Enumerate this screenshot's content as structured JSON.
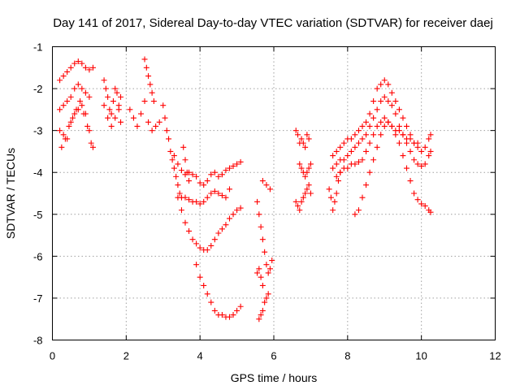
{
  "chart_data": {
    "type": "scatter",
    "title": "Day 141 of 2017, Sidereal Day-to-day VTEC variation (SDTVAR) for receiver daej",
    "xlabel": "GPS time / hours",
    "ylabel": "SDTVAR / TECUs",
    "xlim": [
      0,
      12
    ],
    "ylim": [
      -8,
      -1
    ],
    "xticks": [
      0,
      2,
      4,
      6,
      8,
      10,
      12
    ],
    "yticks": [
      -8,
      -7,
      -6,
      -5,
      -4,
      -3,
      -2,
      -1
    ],
    "xtick_labels": [
      "0",
      "2",
      "4",
      "6",
      "8",
      "10",
      "12"
    ],
    "ytick_labels": [
      "-8",
      "-7",
      "-6",
      "-5",
      "-4",
      "-3",
      "-2",
      "-1"
    ],
    "grid": true,
    "marker": "+",
    "color": "#ff0000",
    "series": [
      {
        "values": [
          [
            0.2,
            -1.8
          ],
          [
            0.3,
            -1.7
          ],
          [
            0.4,
            -1.6
          ],
          [
            0.5,
            -1.5
          ],
          [
            0.6,
            -1.4
          ],
          [
            0.7,
            -1.35
          ],
          [
            0.8,
            -1.4
          ],
          [
            0.9,
            -1.5
          ],
          [
            1.0,
            -1.55
          ],
          [
            1.1,
            -1.5
          ],
          [
            0.2,
            -2.5
          ],
          [
            0.3,
            -2.4
          ],
          [
            0.4,
            -2.3
          ],
          [
            0.5,
            -2.2
          ],
          [
            0.6,
            -2.0
          ],
          [
            0.7,
            -1.9
          ],
          [
            0.8,
            -2.0
          ],
          [
            0.9,
            -2.1
          ],
          [
            1.0,
            -2.2
          ],
          [
            0.2,
            -3.0
          ],
          [
            0.3,
            -3.1
          ],
          [
            0.4,
            -3.2
          ],
          [
            0.5,
            -2.8
          ],
          [
            0.6,
            -2.6
          ],
          [
            0.7,
            -2.5
          ],
          [
            0.8,
            -2.4
          ],
          [
            0.9,
            -2.6
          ],
          [
            1.0,
            -3.0
          ],
          [
            1.1,
            -3.4
          ],
          [
            0.25,
            -3.4
          ],
          [
            0.35,
            -3.2
          ],
          [
            0.45,
            -2.9
          ],
          [
            0.55,
            -2.7
          ],
          [
            0.65,
            -2.5
          ],
          [
            0.75,
            -2.3
          ],
          [
            0.85,
            -2.6
          ],
          [
            0.95,
            -2.9
          ],
          [
            1.05,
            -3.3
          ],
          [
            1.4,
            -1.8
          ],
          [
            1.45,
            -2.0
          ],
          [
            1.5,
            -2.2
          ],
          [
            1.55,
            -2.5
          ],
          [
            1.6,
            -2.6
          ],
          [
            1.65,
            -2.3
          ],
          [
            1.7,
            -2.0
          ],
          [
            1.75,
            -2.1
          ],
          [
            1.8,
            -2.4
          ],
          [
            1.85,
            -2.8
          ],
          [
            1.4,
            -2.4
          ],
          [
            1.5,
            -2.7
          ],
          [
            1.6,
            -2.9
          ],
          [
            1.7,
            -2.7
          ],
          [
            1.8,
            -2.5
          ],
          [
            1.85,
            -2.2
          ],
          [
            2.1,
            -2.5
          ],
          [
            2.2,
            -2.7
          ],
          [
            2.3,
            -2.9
          ],
          [
            2.4,
            -2.6
          ],
          [
            2.5,
            -2.3
          ],
          [
            2.6,
            -2.8
          ],
          [
            2.7,
            -3.0
          ],
          [
            2.8,
            -2.9
          ],
          [
            2.9,
            -2.8
          ],
          [
            2.5,
            -1.3
          ],
          [
            2.55,
            -1.5
          ],
          [
            2.6,
            -1.7
          ],
          [
            2.65,
            -1.9
          ],
          [
            2.7,
            -2.1
          ],
          [
            2.75,
            -2.3
          ],
          [
            3.0,
            -2.4
          ],
          [
            3.05,
            -2.7
          ],
          [
            3.1,
            -3.0
          ],
          [
            3.15,
            -3.2
          ],
          [
            3.2,
            -3.5
          ],
          [
            3.25,
            -3.7
          ],
          [
            3.3,
            -3.9
          ],
          [
            3.35,
            -4.1
          ],
          [
            3.4,
            -4.3
          ],
          [
            3.45,
            -4.5
          ],
          [
            3.5,
            -4.6
          ],
          [
            3.6,
            -4.6
          ],
          [
            3.7,
            -4.65
          ],
          [
            3.8,
            -4.7
          ],
          [
            3.9,
            -4.7
          ],
          [
            4.0,
            -4.75
          ],
          [
            4.1,
            -4.7
          ],
          [
            4.2,
            -4.6
          ],
          [
            4.3,
            -4.5
          ],
          [
            4.4,
            -4.45
          ],
          [
            4.5,
            -4.5
          ],
          [
            4.6,
            -4.55
          ],
          [
            4.7,
            -4.6
          ],
          [
            4.8,
            -4.4
          ],
          [
            3.3,
            -3.6
          ],
          [
            3.4,
            -3.8
          ],
          [
            3.5,
            -3.95
          ],
          [
            3.6,
            -4.05
          ],
          [
            3.7,
            -4.0
          ],
          [
            3.8,
            -4.05
          ],
          [
            3.9,
            -4.1
          ],
          [
            4.0,
            -4.25
          ],
          [
            4.1,
            -4.3
          ],
          [
            4.2,
            -4.2
          ],
          [
            4.3,
            -4.05
          ],
          [
            4.4,
            -4.0
          ],
          [
            4.5,
            -4.1
          ],
          [
            4.6,
            -4.05
          ],
          [
            4.7,
            -3.95
          ],
          [
            4.8,
            -3.9
          ],
          [
            4.9,
            -3.85
          ],
          [
            5.0,
            -3.8
          ],
          [
            5.1,
            -3.75
          ],
          [
            3.4,
            -4.6
          ],
          [
            3.5,
            -4.9
          ],
          [
            3.6,
            -5.2
          ],
          [
            3.7,
            -5.4
          ],
          [
            3.8,
            -5.6
          ],
          [
            3.9,
            -5.7
          ],
          [
            4.0,
            -5.8
          ],
          [
            4.1,
            -5.85
          ],
          [
            4.2,
            -5.85
          ],
          [
            4.3,
            -5.75
          ],
          [
            4.4,
            -5.6
          ],
          [
            4.5,
            -5.45
          ],
          [
            4.6,
            -5.35
          ],
          [
            4.7,
            -5.25
          ],
          [
            4.8,
            -5.1
          ],
          [
            4.9,
            -5.0
          ],
          [
            5.0,
            -4.9
          ],
          [
            5.1,
            -4.85
          ],
          [
            3.9,
            -6.2
          ],
          [
            4.0,
            -6.5
          ],
          [
            4.1,
            -6.7
          ],
          [
            4.2,
            -6.9
          ],
          [
            4.3,
            -7.1
          ],
          [
            4.4,
            -7.3
          ],
          [
            4.5,
            -7.4
          ],
          [
            4.6,
            -7.4
          ],
          [
            4.7,
            -7.45
          ],
          [
            4.8,
            -7.45
          ],
          [
            4.9,
            -7.4
          ],
          [
            5.0,
            -7.3
          ],
          [
            5.1,
            -7.2
          ],
          [
            3.55,
            -3.4
          ],
          [
            3.6,
            -3.7
          ],
          [
            3.65,
            -4.0
          ],
          [
            3.7,
            -4.2
          ],
          [
            5.55,
            -4.7
          ],
          [
            5.6,
            -5.0
          ],
          [
            5.65,
            -5.3
          ],
          [
            5.7,
            -5.6
          ],
          [
            5.75,
            -5.9
          ],
          [
            5.8,
            -6.2
          ],
          [
            5.85,
            -6.4
          ],
          [
            5.9,
            -6.3
          ],
          [
            5.95,
            -6.1
          ],
          [
            5.6,
            -6.3
          ],
          [
            5.65,
            -6.5
          ],
          [
            5.7,
            -6.7
          ],
          [
            5.55,
            -6.4
          ],
          [
            5.6,
            -7.5
          ],
          [
            5.65,
            -7.4
          ],
          [
            5.7,
            -7.3
          ],
          [
            5.75,
            -7.1
          ],
          [
            5.8,
            -7.0
          ],
          [
            5.85,
            -6.9
          ],
          [
            5.7,
            -4.2
          ],
          [
            5.8,
            -4.3
          ],
          [
            5.9,
            -4.4
          ],
          [
            6.6,
            -3.0
          ],
          [
            6.65,
            -3.1
          ],
          [
            6.7,
            -3.3
          ],
          [
            6.75,
            -3.2
          ],
          [
            6.8,
            -3.3
          ],
          [
            6.85,
            -3.4
          ],
          [
            6.9,
            -3.1
          ],
          [
            6.95,
            -3.2
          ],
          [
            6.6,
            -4.7
          ],
          [
            6.65,
            -4.8
          ],
          [
            6.7,
            -4.9
          ],
          [
            6.75,
            -4.7
          ],
          [
            6.8,
            -4.6
          ],
          [
            6.85,
            -4.5
          ],
          [
            6.9,
            -4.4
          ],
          [
            6.95,
            -4.3
          ],
          [
            7.0,
            -4.5
          ],
          [
            6.7,
            -3.8
          ],
          [
            6.75,
            -3.9
          ],
          [
            6.8,
            -4.0
          ],
          [
            6.85,
            -4.1
          ],
          [
            6.9,
            -4.0
          ],
          [
            6.95,
            -3.9
          ],
          [
            7.0,
            -3.8
          ],
          [
            7.5,
            -4.4
          ],
          [
            7.55,
            -4.6
          ],
          [
            7.6,
            -4.9
          ],
          [
            7.65,
            -4.7
          ],
          [
            7.7,
            -4.5
          ],
          [
            7.75,
            -4.2
          ],
          [
            7.8,
            -4.0
          ],
          [
            7.6,
            -3.6
          ],
          [
            7.7,
            -3.5
          ],
          [
            7.8,
            -3.4
          ],
          [
            7.9,
            -3.3
          ],
          [
            8.0,
            -3.2
          ],
          [
            8.1,
            -3.2
          ],
          [
            8.2,
            -3.1
          ],
          [
            8.3,
            -3.0
          ],
          [
            8.4,
            -2.9
          ],
          [
            8.5,
            -2.8
          ],
          [
            8.6,
            -2.6
          ],
          [
            8.7,
            -2.3
          ],
          [
            8.8,
            -2.0
          ],
          [
            8.9,
            -1.9
          ],
          [
            9.0,
            -1.8
          ],
          [
            9.1,
            -1.9
          ],
          [
            9.2,
            -2.1
          ],
          [
            9.3,
            -2.3
          ],
          [
            9.4,
            -2.5
          ],
          [
            9.5,
            -2.7
          ],
          [
            9.6,
            -2.9
          ],
          [
            9.7,
            -3.1
          ],
          [
            9.8,
            -3.3
          ],
          [
            9.9,
            -3.4
          ],
          [
            10.0,
            -3.5
          ],
          [
            10.1,
            -3.4
          ],
          [
            10.2,
            -3.2
          ],
          [
            10.25,
            -3.1
          ],
          [
            7.6,
            -3.9
          ],
          [
            7.7,
            -3.8
          ],
          [
            7.8,
            -3.7
          ],
          [
            7.9,
            -3.7
          ],
          [
            8.0,
            -3.6
          ],
          [
            8.1,
            -3.5
          ],
          [
            8.2,
            -3.4
          ],
          [
            8.3,
            -3.3
          ],
          [
            8.4,
            -3.2
          ],
          [
            8.5,
            -3.1
          ],
          [
            8.6,
            -2.9
          ],
          [
            8.7,
            -2.7
          ],
          [
            8.8,
            -2.5
          ],
          [
            8.9,
            -2.3
          ],
          [
            9.0,
            -2.2
          ],
          [
            9.1,
            -2.3
          ],
          [
            9.2,
            -2.4
          ],
          [
            9.3,
            -2.6
          ],
          [
            9.4,
            -2.9
          ],
          [
            9.5,
            -3.1
          ],
          [
            9.6,
            -3.3
          ],
          [
            9.7,
            -3.5
          ],
          [
            9.8,
            -3.7
          ],
          [
            9.9,
            -3.8
          ],
          [
            10.0,
            -3.85
          ],
          [
            10.1,
            -3.8
          ],
          [
            10.2,
            -3.6
          ],
          [
            10.25,
            -3.5
          ],
          [
            7.7,
            -4.1
          ],
          [
            7.8,
            -4.0
          ],
          [
            7.9,
            -3.9
          ],
          [
            8.0,
            -3.9
          ],
          [
            8.1,
            -3.8
          ],
          [
            8.2,
            -3.8
          ],
          [
            8.3,
            -3.75
          ],
          [
            8.4,
            -3.7
          ],
          [
            8.5,
            -3.5
          ],
          [
            8.6,
            -3.3
          ],
          [
            8.7,
            -3.1
          ],
          [
            8.8,
            -2.9
          ],
          [
            8.9,
            -2.8
          ],
          [
            9.0,
            -2.7
          ],
          [
            9.1,
            -2.8
          ],
          [
            9.2,
            -2.9
          ],
          [
            9.3,
            -3.0
          ],
          [
            9.4,
            -3.0
          ],
          [
            9.5,
            -3.1
          ],
          [
            9.6,
            -3.2
          ],
          [
            9.7,
            -3.2
          ],
          [
            9.8,
            -3.3
          ],
          [
            9.9,
            -3.3
          ],
          [
            8.2,
            -5.0
          ],
          [
            8.3,
            -4.9
          ],
          [
            8.4,
            -4.6
          ],
          [
            8.5,
            -4.3
          ],
          [
            8.6,
            -4.0
          ],
          [
            8.7,
            -3.7
          ],
          [
            8.8,
            -3.4
          ],
          [
            8.9,
            -3.1
          ],
          [
            9.0,
            -2.9
          ],
          [
            9.1,
            -2.8
          ],
          [
            9.2,
            -2.9
          ],
          [
            9.3,
            -3.1
          ],
          [
            9.4,
            -3.3
          ],
          [
            9.5,
            -3.6
          ],
          [
            9.6,
            -3.9
          ],
          [
            9.7,
            -4.2
          ],
          [
            9.8,
            -4.5
          ],
          [
            9.9,
            -4.65
          ],
          [
            10.0,
            -4.75
          ],
          [
            10.1,
            -4.8
          ],
          [
            10.2,
            -4.9
          ],
          [
            10.25,
            -4.95
          ]
        ]
      }
    ]
  }
}
